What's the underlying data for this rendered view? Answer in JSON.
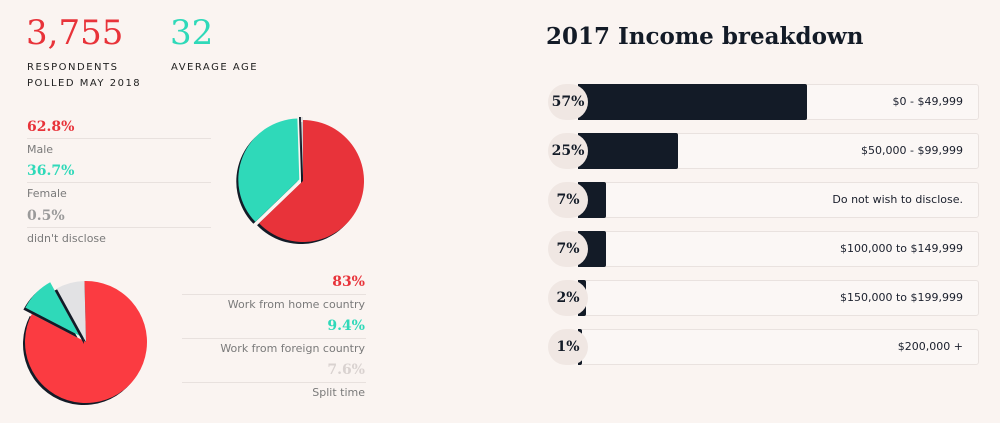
{
  "stats": {
    "respondents_value": "3,755",
    "respondents_caption1": "RESPONDENTS",
    "respondents_caption2": "POLLED MAY 2018",
    "age_value": "32",
    "age_caption": "AVERAGE AGE"
  },
  "colors": {
    "red": "#e8333a",
    "teal": "#2fd9b9",
    "gray": "#dedddd",
    "navy": "#131b27"
  },
  "chart_data": [
    {
      "type": "pie",
      "slices": [
        {
          "label": "Male",
          "value": 62.8,
          "display": "62.8%",
          "color": "#e8333a"
        },
        {
          "label": "Female",
          "value": 36.7,
          "display": "36.7%",
          "color": "#2fd9b9"
        },
        {
          "label": "didn't disclose",
          "value": 0.5,
          "display": "0.5%",
          "color": "#dedddd"
        }
      ]
    },
    {
      "type": "pie",
      "slices": [
        {
          "label": "Work from home country",
          "value": 83,
          "display": "83%",
          "color": "#fb3b41"
        },
        {
          "label": "Work from foreign country",
          "value": 9.4,
          "display": "9.4%",
          "color": "#2fd9b9"
        },
        {
          "label": "Split time",
          "value": 7.6,
          "display": "7.6%",
          "color": "#e2e2e4"
        }
      ]
    },
    {
      "type": "bar",
      "title": "2017 Income breakdown",
      "categories": [
        "$0 - $49,999",
        "$50,000 - $99,999",
        "Do not wish to disclose.",
        "$100,000 to $149,999",
        "$150,000 to $199,999",
        "$200,000 +"
      ],
      "values": [
        57,
        25,
        7,
        7,
        2,
        1
      ],
      "value_labels": [
        "57%",
        "25%",
        "7%",
        "7%",
        "2%",
        "1%"
      ],
      "xlim": [
        0,
        100
      ]
    }
  ]
}
